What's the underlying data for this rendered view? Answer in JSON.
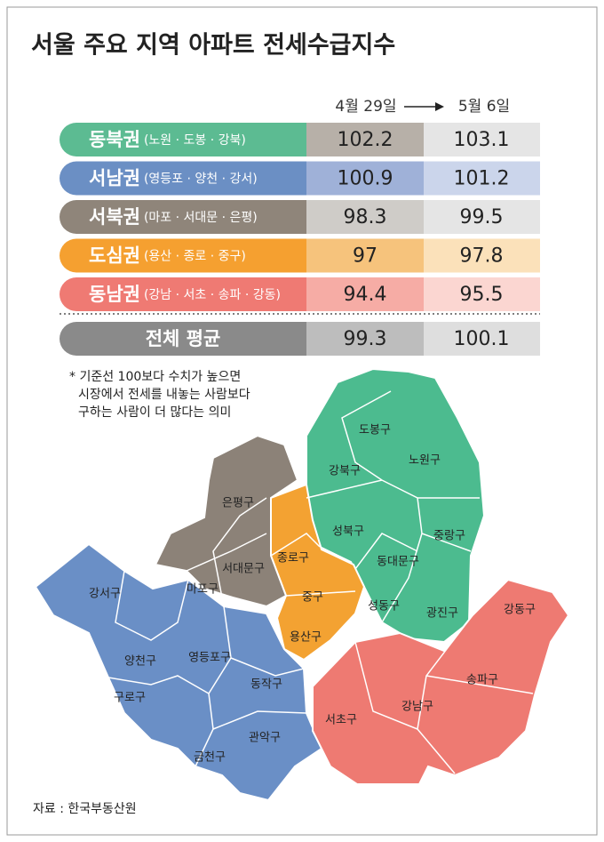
{
  "title": "서울 주요 지역 아파트 전세수급지수",
  "table": {
    "headers": [
      "4월 29일",
      "5월 6일"
    ],
    "rows": [
      {
        "region": "동북권",
        "districts": "(노원 · 도봉 · 강북)",
        "values": [
          102.2,
          103.1
        ]
      },
      {
        "region": "서남권",
        "districts": "(영등포 · 양천 · 강서)",
        "values": [
          100.9,
          101.2
        ]
      },
      {
        "region": "서북권",
        "districts": "(마포 · 서대문 · 은평)",
        "values": [
          98.3,
          99.5
        ]
      },
      {
        "region": "도심권",
        "districts": "(용산 · 종로 · 중구)",
        "values": [
          97,
          97.8
        ]
      },
      {
        "region": "동남권",
        "districts": "(강남 · 서초 · 송파 · 강동)",
        "values": [
          94.4,
          95.5
        ]
      }
    ],
    "total": {
      "region": "전체 평균",
      "values": [
        99.3,
        100.1
      ]
    }
  },
  "note": [
    "* 기준선 100보다 수치가 높으면",
    "시장에서 전세를 내놓는 사람보다",
    "구하는 사람이 더 많다는 의미"
  ],
  "map": {
    "districts": [
      "도봉구",
      "노원구",
      "강북구",
      "성북구",
      "중랑구",
      "동대문구",
      "성동구",
      "광진구",
      "은평구",
      "서대문구",
      "마포구",
      "종로구",
      "중구",
      "용산구",
      "강서구",
      "양천구",
      "영등포구",
      "구로구",
      "동작구",
      "관악구",
      "금천구",
      "강동구",
      "송파구",
      "강남구",
      "서초구"
    ]
  },
  "source": "자료 : 한국부동산원"
}
